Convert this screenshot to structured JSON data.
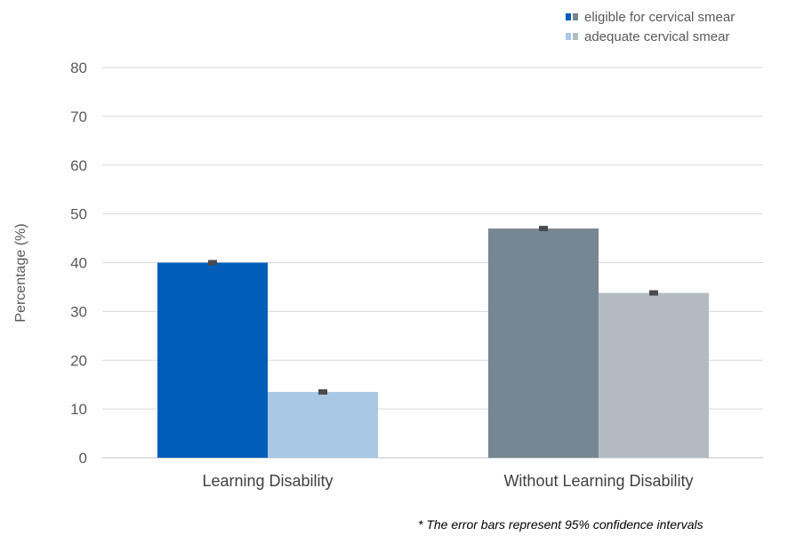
{
  "chart_data": {
    "type": "bar",
    "categories": [
      "Learning Disability",
      "Without Learning Disability"
    ],
    "series": [
      {
        "name": "eligible for cervical smear",
        "values": [
          40.0,
          47.0
        ],
        "colors": [
          "#005EB8",
          "#768692"
        ]
      },
      {
        "name": "adequate cervical smear",
        "values": [
          13.5,
          33.8
        ],
        "colors": [
          "#A9C8E6",
          "#B3BBC1"
        ]
      }
    ],
    "error_bars": [
      [
        0.4,
        0.2
      ],
      [
        0.4,
        0.2
      ]
    ],
    "ylabel": "Percentage (%)",
    "xlabel": "",
    "ylim": [
      0,
      80
    ],
    "yticks": [
      0,
      10,
      20,
      30,
      40,
      50,
      60,
      70,
      80
    ],
    "grid": true,
    "legend_position": "top-right",
    "footnote": "* The error bars represent 95%  confidence intervals"
  }
}
